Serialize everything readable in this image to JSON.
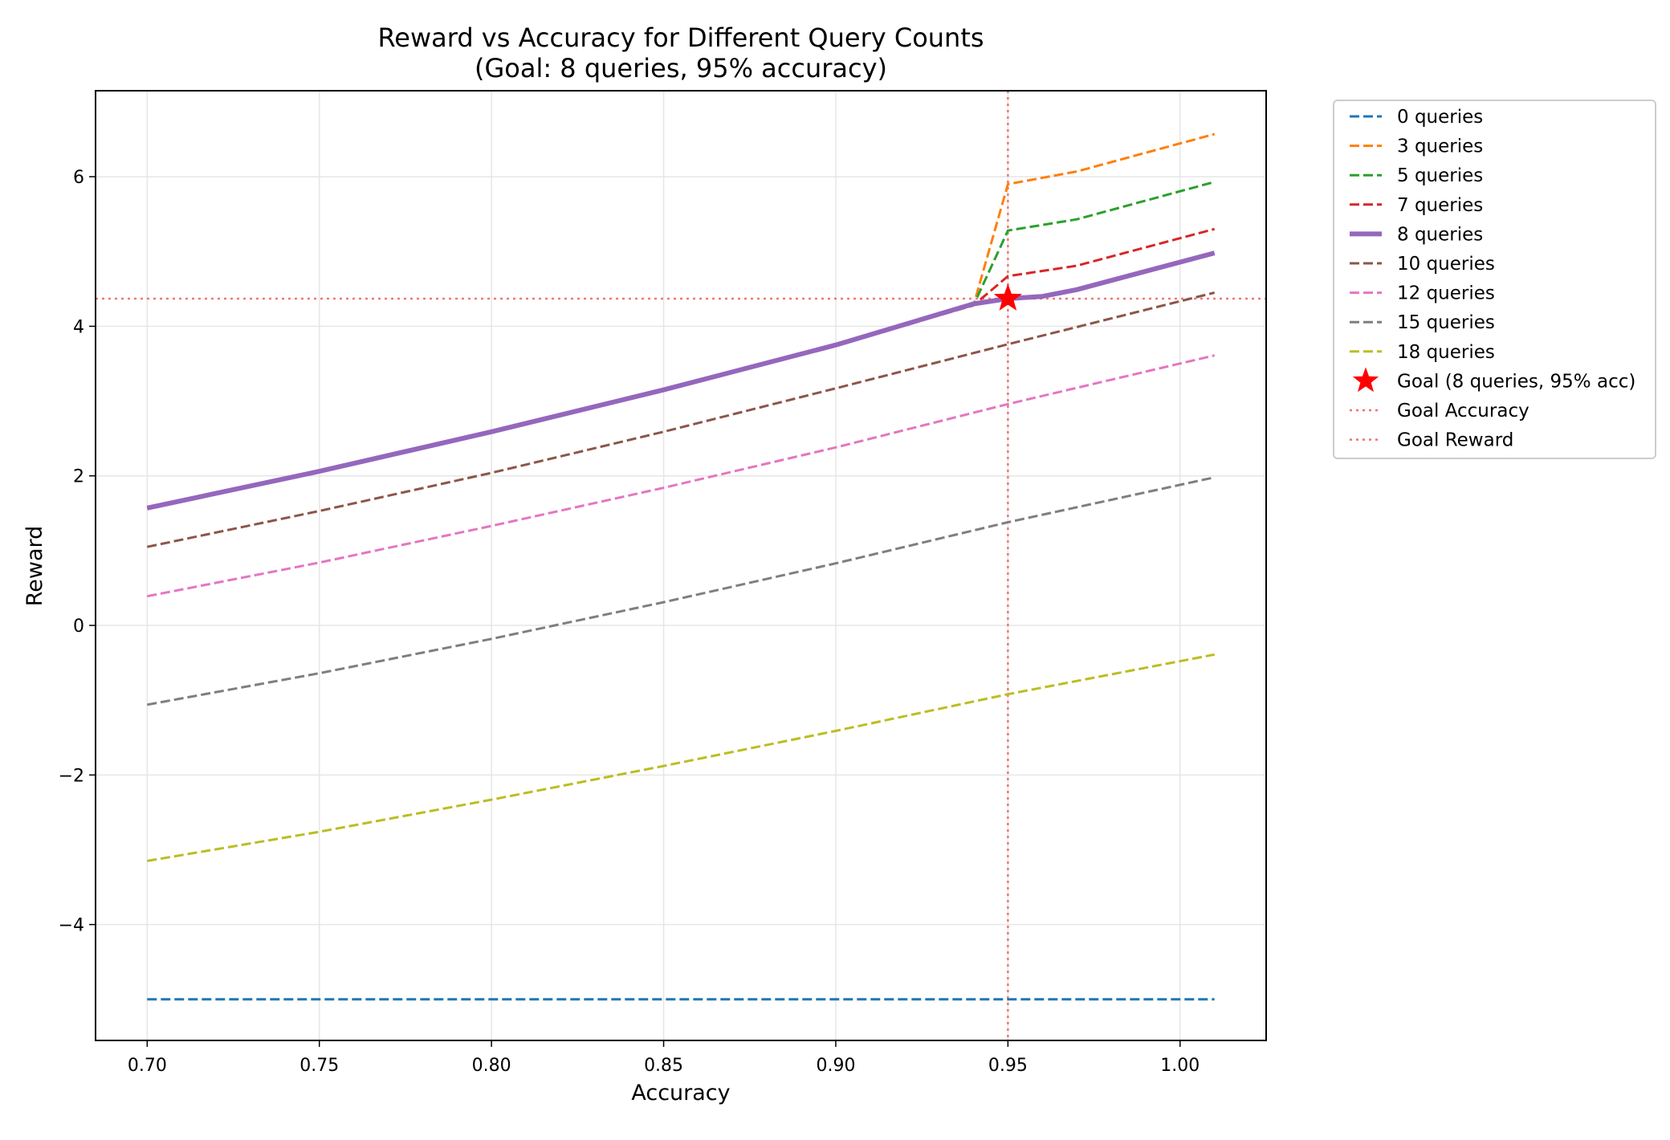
{
  "chart_data": {
    "type": "line",
    "title": "Reward vs Accuracy for Different Query Counts",
    "subtitle": "(Goal: 8 queries, 95% accuracy)",
    "xlabel": "Accuracy",
    "ylabel": "Reward",
    "xlim": [
      0.685,
      1.025
    ],
    "ylim": [
      -5.55,
      7.15
    ],
    "xticks": [
      0.7,
      0.75,
      0.8,
      0.85,
      0.9,
      0.95,
      1.0
    ],
    "xtick_labels": [
      "0.70",
      "0.75",
      "0.80",
      "0.85",
      "0.90",
      "0.95",
      "1.00"
    ],
    "yticks": [
      -4,
      -2,
      0,
      2,
      4,
      6
    ],
    "ytick_labels": [
      "−4",
      "−2",
      "0",
      "2",
      "4",
      "6"
    ],
    "grid": true,
    "legend_position": "outside-right",
    "series": [
      {
        "name": "0 queries",
        "color": "#1f77b4",
        "style": "dashed",
        "width": 3,
        "x": [
          0.7,
          1.01
        ],
        "y": [
          -5.0,
          -5.0
        ]
      },
      {
        "name": "3 queries",
        "color": "#ff7f0e",
        "style": "dashed",
        "width": 3,
        "x": [
          0.7,
          0.75,
          0.8,
          0.85,
          0.9,
          0.94,
          0.95,
          0.97,
          1.01
        ],
        "y": [
          1.57,
          2.06,
          2.59,
          3.15,
          3.75,
          4.28,
          5.9,
          6.07,
          6.57
        ]
      },
      {
        "name": "5 queries",
        "color": "#2ca02c",
        "style": "dashed",
        "width": 3,
        "x": [
          0.7,
          0.75,
          0.8,
          0.85,
          0.9,
          0.94,
          0.95,
          0.97,
          1.01
        ],
        "y": [
          1.57,
          2.06,
          2.59,
          3.15,
          3.75,
          4.28,
          5.28,
          5.43,
          5.93
        ]
      },
      {
        "name": "7 queries",
        "color": "#d62728",
        "style": "dashed",
        "width": 3,
        "x": [
          0.7,
          0.75,
          0.8,
          0.85,
          0.9,
          0.94,
          0.95,
          0.97,
          1.01
        ],
        "y": [
          1.57,
          2.06,
          2.59,
          3.15,
          3.75,
          4.28,
          4.67,
          4.81,
          5.3
        ]
      },
      {
        "name": "8 queries",
        "color": "#9467bd",
        "style": "solid",
        "width": 6,
        "x": [
          0.7,
          0.75,
          0.8,
          0.85,
          0.9,
          0.94,
          0.95,
          0.96,
          0.97,
          1.01
        ],
        "y": [
          1.57,
          2.06,
          2.59,
          3.15,
          3.75,
          4.3,
          4.37,
          4.4,
          4.49,
          4.98
        ]
      },
      {
        "name": "10 queries",
        "color": "#8c564b",
        "style": "dashed",
        "width": 3,
        "x": [
          0.7,
          0.75,
          0.8,
          0.85,
          0.9,
          0.95,
          1.01
        ],
        "y": [
          1.05,
          1.53,
          2.04,
          2.59,
          3.17,
          3.76,
          4.45
        ]
      },
      {
        "name": "12 queries",
        "color": "#e377c2",
        "style": "dashed",
        "width": 3,
        "x": [
          0.7,
          0.75,
          0.8,
          0.85,
          0.9,
          0.95,
          1.01
        ],
        "y": [
          0.39,
          0.84,
          1.33,
          1.84,
          2.38,
          2.96,
          3.61
        ]
      },
      {
        "name": "15 queries",
        "color": "#7f7f7f",
        "style": "dashed",
        "width": 3,
        "x": [
          0.7,
          0.75,
          0.8,
          0.85,
          0.9,
          0.95,
          1.01
        ],
        "y": [
          -1.06,
          -0.64,
          -0.18,
          0.31,
          0.83,
          1.38,
          1.98
        ]
      },
      {
        "name": "18 queries",
        "color": "#bcbd22",
        "style": "dashed",
        "width": 3,
        "x": [
          0.7,
          0.75,
          0.8,
          0.85,
          0.9,
          0.95,
          1.01
        ],
        "y": [
          -3.15,
          -2.76,
          -2.33,
          -1.88,
          -1.41,
          -0.92,
          -0.39
        ]
      }
    ],
    "goal_point": {
      "name": "Goal (8 queries, 95% acc)",
      "x": 0.95,
      "y": 4.37,
      "color": "#ff0000",
      "marker": "star"
    },
    "reference_lines": [
      {
        "name": "Goal Accuracy",
        "orientation": "vertical",
        "value": 0.95,
        "color": "#f07070",
        "style": "dotted"
      },
      {
        "name": "Goal Reward",
        "orientation": "horizontal",
        "value": 4.37,
        "color": "#f07070",
        "style": "dotted"
      }
    ]
  }
}
